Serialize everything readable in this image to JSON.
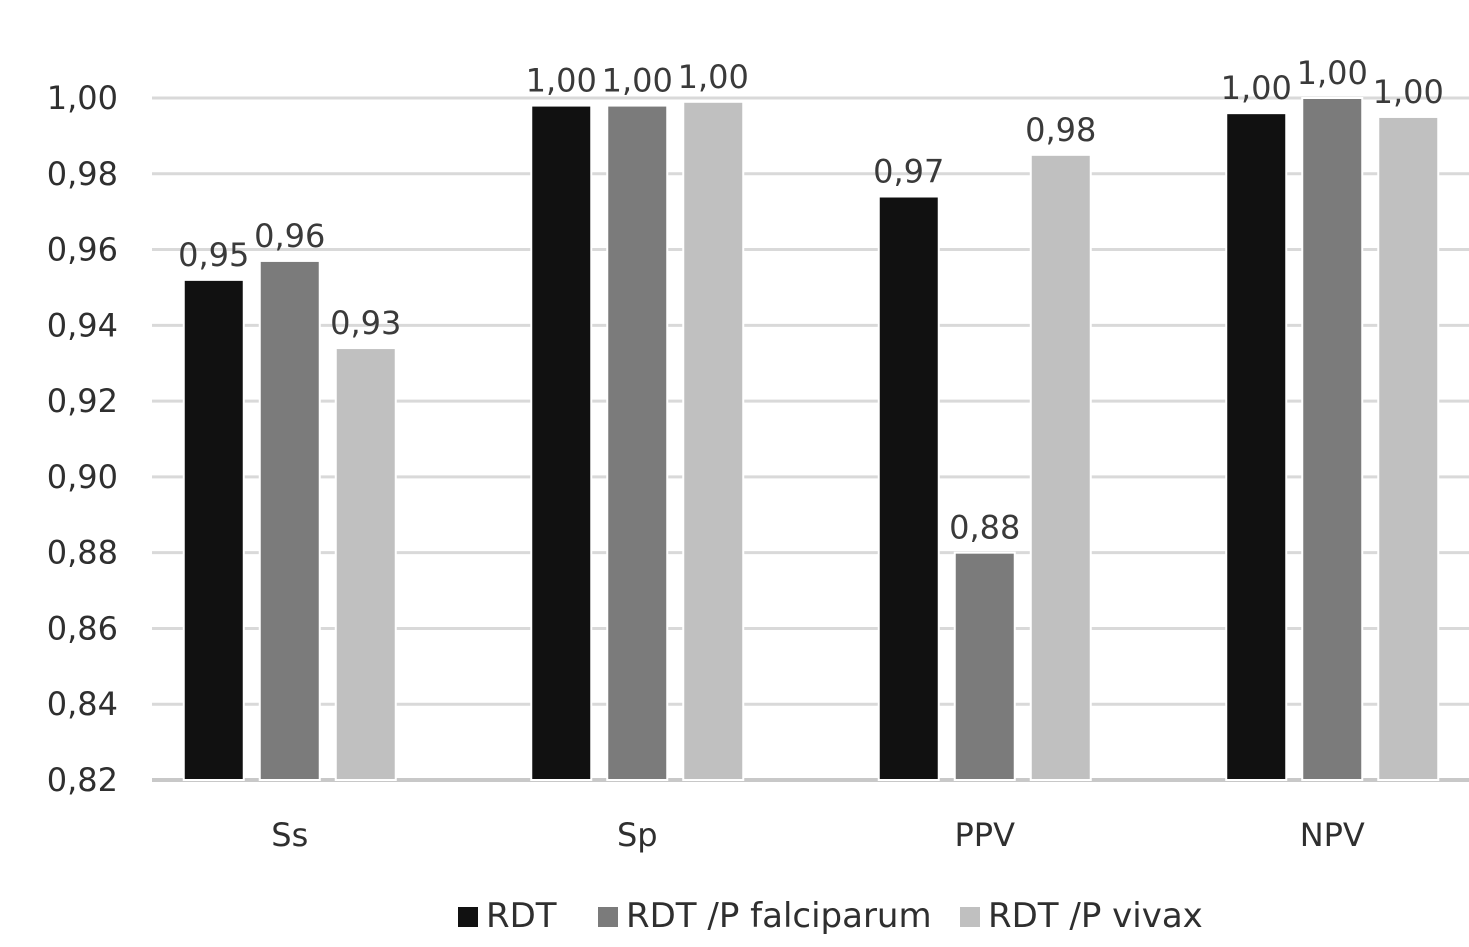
{
  "chart_data": {
    "type": "bar",
    "title": "",
    "xlabel": "",
    "ylabel": "",
    "categories": [
      "Ss",
      "Sp",
      "PPV",
      "NPV"
    ],
    "series": [
      {
        "name": "RDT",
        "color": "#111111",
        "values": [
          0.952,
          0.998,
          0.974,
          0.996
        ],
        "labels": [
          "0,95",
          "1,00",
          "0,97",
          "1,00"
        ]
      },
      {
        "name": "RDT /P falciparum",
        "color": "#7b7b7b",
        "values": [
          0.957,
          0.998,
          0.88,
          1.0
        ],
        "labels": [
          "0,96",
          "1,00",
          "0,88",
          "1,00"
        ]
      },
      {
        "name": "RDT /P vivax",
        "color": "#c0c0c0",
        "values": [
          0.934,
          0.999,
          0.985,
          0.995
        ],
        "labels": [
          "0,93",
          "1,00",
          "0,98",
          "1,00"
        ]
      }
    ],
    "ylim": [
      0.82,
      1.0
    ],
    "yticks": [
      "0,82",
      "0,84",
      "0,86",
      "0,88",
      "0,90",
      "0,92",
      "0,94",
      "0,96",
      "0,98",
      "1,00"
    ],
    "ytick_values": [
      0.82,
      0.84,
      0.86,
      0.88,
      0.9,
      0.92,
      0.94,
      0.96,
      0.98,
      1.0
    ],
    "grid": true,
    "legend_position": "bottom-center"
  }
}
